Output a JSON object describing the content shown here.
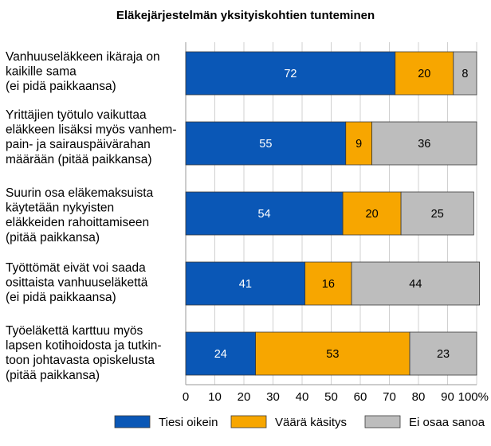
{
  "chart_data": {
    "type": "bar",
    "orientation": "horizontal",
    "stacked": true,
    "title": "Eläkejärjestelmän yksityiskohtien tunteminen",
    "xlabel": "",
    "ylabel": "",
    "xlim": [
      0,
      100
    ],
    "x_ticks": [
      "0",
      "10",
      "20",
      "30",
      "40",
      "50",
      "60",
      "70",
      "80",
      "90",
      "100%"
    ],
    "grid": true,
    "legend_position": "bottom",
    "categories": [
      [
        "Vanhuuseläkkeen ikäraja on",
        "kaikille sama",
        "(ei pidä paikkaansa)"
      ],
      [
        "Yrittäjien työtulo vaikuttaa",
        "eläkkeen lisäksi myös vanhem-",
        "pain- ja sairauspäivärahan",
        "määrään (pitää paikkansa)"
      ],
      [
        "Suurin osa eläkemaksuista",
        "käytetään nykyisten",
        "eläkkeiden rahoittamiseen",
        "(pitää paikkansa)"
      ],
      [
        "Työttömät eivät voi saada",
        "osittaista vanhuuseläkettä",
        "(ei pidä paikkaansa)"
      ],
      [
        "Työeläkettä karttuu myös",
        "lapsen kotihoidosta ja tutkin-",
        "toon johtavasta opiskelusta",
        "(pitää paikkansa)"
      ]
    ],
    "series": [
      {
        "name": "Tiesi oikein",
        "color": "#0a57b6",
        "label_color": "#ffffff",
        "values": [
          72,
          55,
          54,
          41,
          24
        ]
      },
      {
        "name": "Väärä käsitys",
        "color": "#f7a600",
        "label_color": "#000000",
        "values": [
          20,
          9,
          20,
          16,
          53
        ]
      },
      {
        "name": "Ei osaa sanoa",
        "color": "#bdbdbd",
        "label_color": "#000000",
        "values": [
          8,
          36,
          25,
          44,
          23
        ]
      }
    ]
  }
}
